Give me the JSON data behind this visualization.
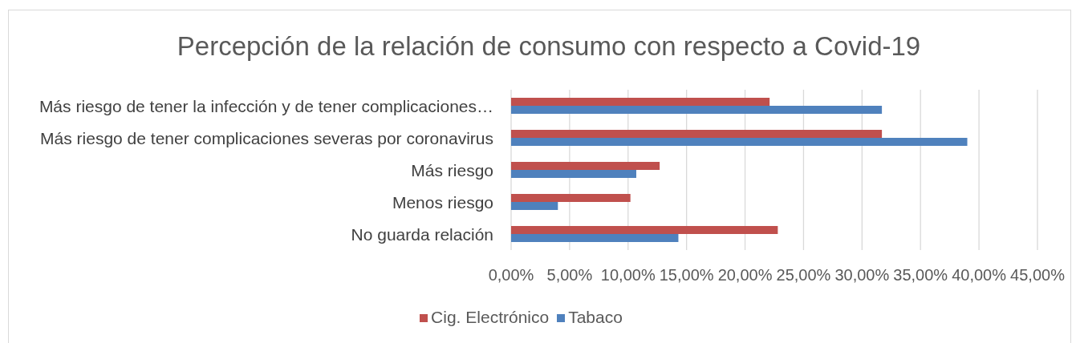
{
  "chart_data": {
    "type": "bar",
    "orientation": "horizontal",
    "title": "Percepción de la relación de consumo con respecto a Covid-19",
    "categories": [
      "Más riesgo de tener la infección y de tener complicaciones…",
      "Más riesgo de tener complicaciones severas por coronavirus",
      "Más riesgo",
      "Menos riesgo",
      "No guarda relación"
    ],
    "series": [
      {
        "name": "Cig. Electrónico",
        "color": "#c0504d",
        "values": [
          22.1,
          31.7,
          12.7,
          10.2,
          22.8
        ]
      },
      {
        "name": "Tabaco",
        "color": "#4f81bd",
        "values": [
          31.7,
          39.0,
          10.7,
          4.0,
          14.3
        ]
      }
    ],
    "xlim": [
      0,
      45
    ],
    "xticks": [
      {
        "value": 0,
        "label": "0,00%"
      },
      {
        "value": 5,
        "label": "5,00%"
      },
      {
        "value": 10,
        "label": "10,00%"
      },
      {
        "value": 15,
        "label": "15,00%"
      },
      {
        "value": 20,
        "label": "20,00%"
      },
      {
        "value": 25,
        "label": "25,00%"
      },
      {
        "value": 30,
        "label": "30,00%"
      },
      {
        "value": 35,
        "label": "35,00%"
      },
      {
        "value": 40,
        "label": "40,00%"
      },
      {
        "value": 45,
        "label": "45,00%"
      }
    ],
    "grid": "x",
    "legend": "bottom"
  }
}
